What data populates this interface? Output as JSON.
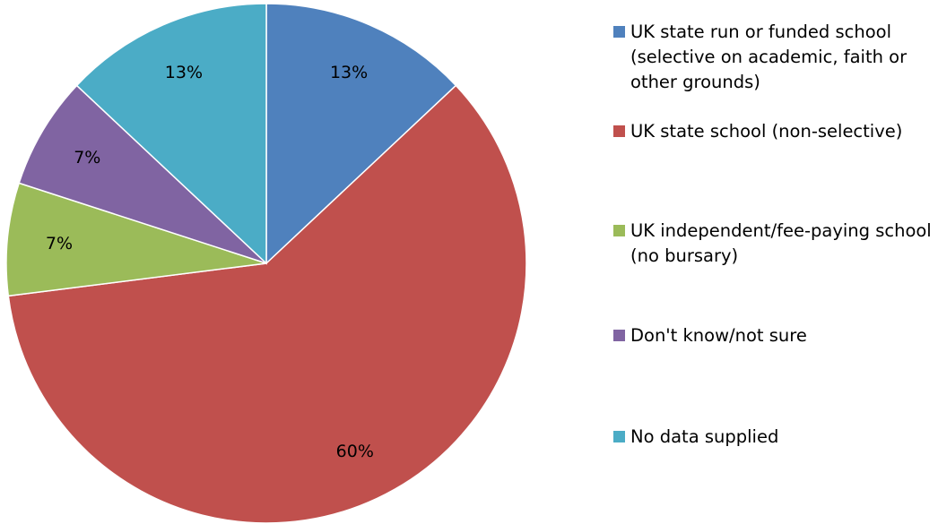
{
  "chart_data": {
    "type": "pie",
    "title": "",
    "slices": [
      {
        "label": "UK state run or funded school (selective on academic, faith or other grounds)",
        "value": 13,
        "display": "13%",
        "color": "#4F81BD"
      },
      {
        "label": "UK state school (non-selective)",
        "value": 60,
        "display": "60%",
        "color": "#C0504D"
      },
      {
        "label": "UK independent/fee-paying school (no bursary)",
        "value": 7,
        "display": "7%",
        "color": "#9BBB59"
      },
      {
        "label": "Don't know/not sure",
        "value": 7,
        "display": "7%",
        "color": "#8064A2"
      },
      {
        "label": "No data supplied",
        "value": 13,
        "display": "13%",
        "color": "#4BACC6"
      }
    ],
    "start_angle": "12 o'clock",
    "direction": "clockwise",
    "legend_position": "right"
  }
}
